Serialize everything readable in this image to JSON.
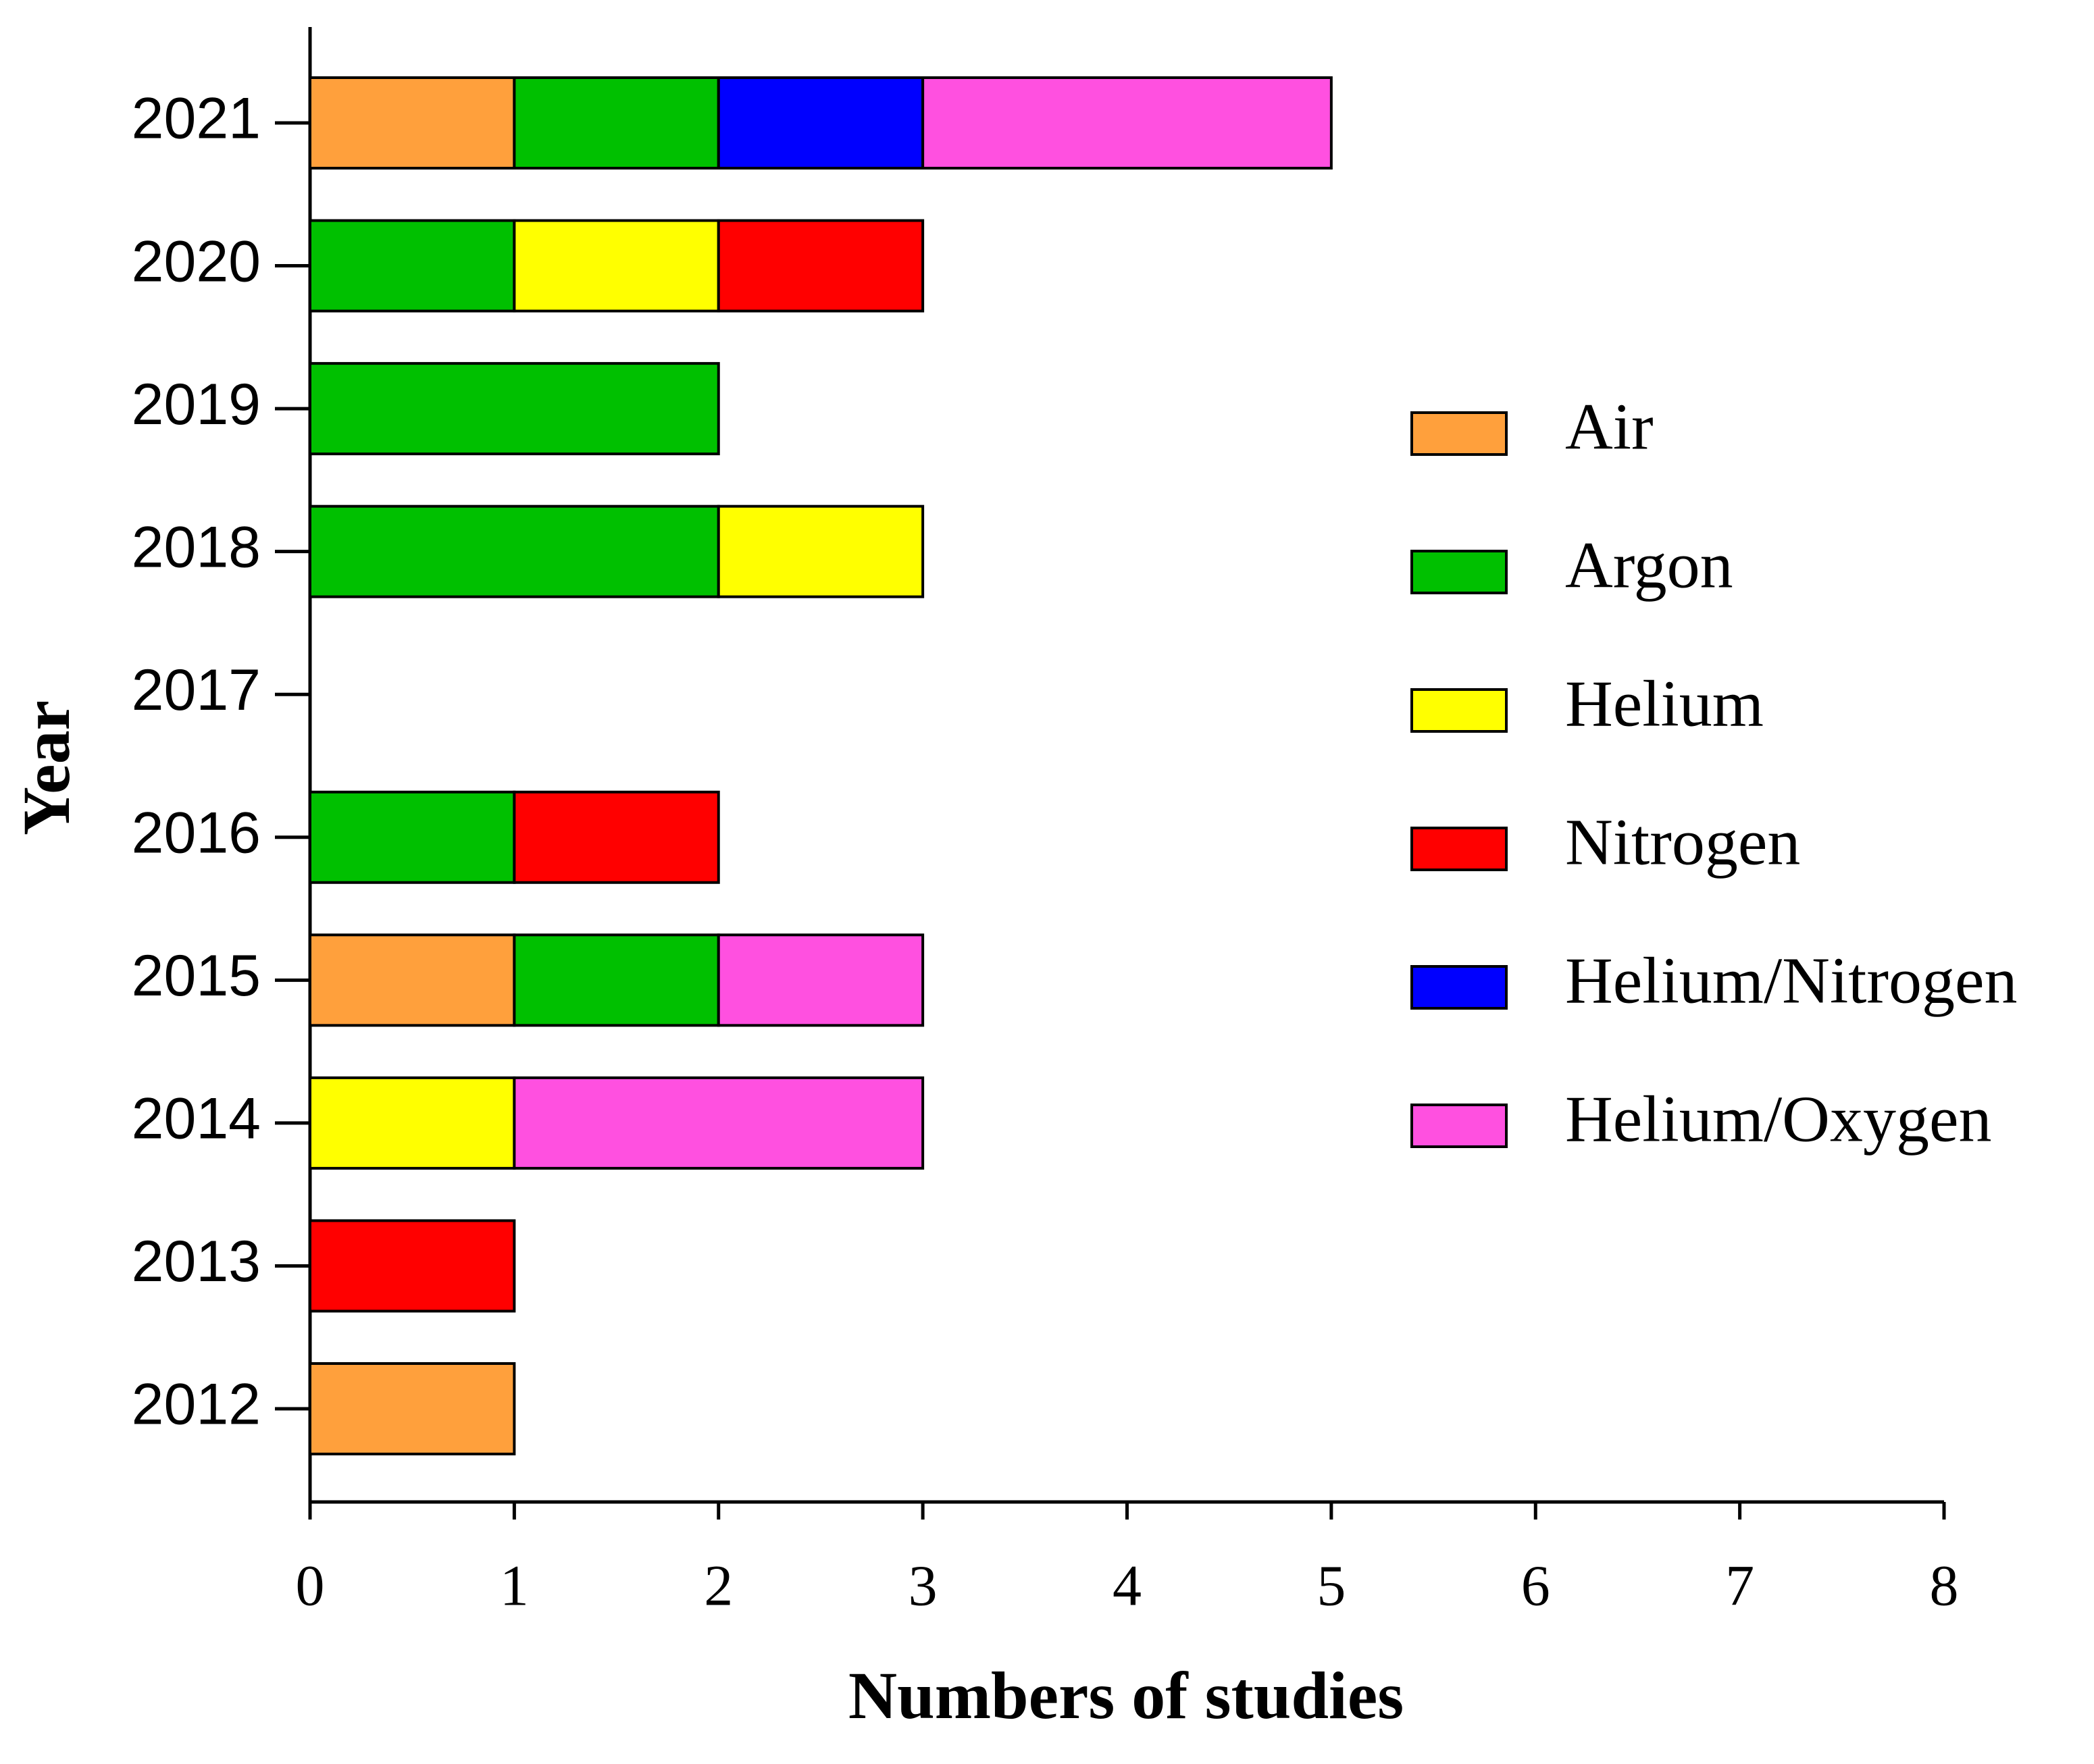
{
  "chart_data": {
    "type": "stacked-barh",
    "x_label": "Numbers of studies",
    "y_label": "Year",
    "categories": [
      "2012",
      "2013",
      "2014",
      "2015",
      "2016",
      "2017",
      "2018",
      "2019",
      "2020",
      "2021"
    ],
    "series": [
      {
        "name": "Air",
        "color": "#ffa03c",
        "values": [
          1,
          0,
          0,
          1,
          0,
          0,
          0,
          0,
          0,
          1
        ]
      },
      {
        "name": "Argon",
        "color": "#00c000",
        "values": [
          0,
          0,
          0,
          1,
          1,
          0,
          2,
          2,
          1,
          1
        ]
      },
      {
        "name": "Helium",
        "color": "#ffff00",
        "values": [
          0,
          0,
          1,
          0,
          0,
          0,
          1,
          0,
          1,
          0
        ]
      },
      {
        "name": "Nitrogen",
        "color": "#ff0000",
        "values": [
          0,
          1,
          0,
          0,
          1,
          0,
          0,
          0,
          1,
          0
        ]
      },
      {
        "name": "Helium/Nitrogen",
        "color": "#0000ff",
        "values": [
          0,
          0,
          0,
          0,
          0,
          0,
          0,
          0,
          0,
          1
        ]
      },
      {
        "name": "Helium/Oxygen",
        "color": "#ff50e0",
        "values": [
          0,
          0,
          2,
          1,
          0,
          0,
          0,
          0,
          0,
          2
        ]
      }
    ],
    "xlim": [
      0,
      8
    ],
    "xticks": [
      0,
      1,
      2,
      3,
      4,
      5,
      6,
      7,
      8
    ],
    "legend": "right"
  }
}
